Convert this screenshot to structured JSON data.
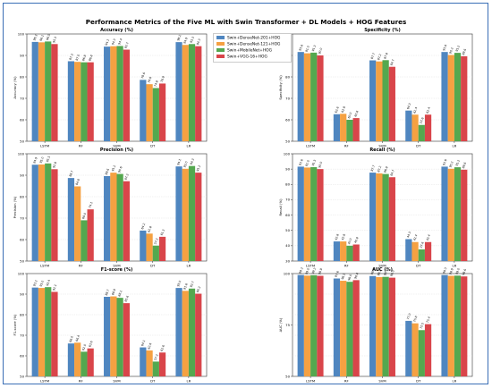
{
  "title": "Performance Metrics of the Five ML with Swin Transformer + DL Models + HOG Features",
  "colors": [
    "#4f86c0",
    "#f5a142",
    "#54a84f",
    "#d9454a"
  ],
  "chart_data": [
    {
      "type": "bar",
      "title": "Accuracy (%)",
      "ylabel": "Accuracy (%)",
      "categories": [
        "LSTM",
        "RF",
        "SVM",
        "DT",
        "LR"
      ],
      "ylim": [
        50,
        100
      ],
      "yticks": [
        50,
        60,
        70,
        80,
        90,
        100
      ],
      "series": [
        {
          "name": "Swin+DenseNet-201+HOG",
          "values": [
            96.3,
            87.3,
            94.1,
            78.6,
            96.2
          ]
        },
        {
          "name": "Swin+DenseNet-121+HOG",
          "values": [
            96.1,
            87.0,
            94.3,
            76.6,
            94.9
          ]
        },
        {
          "name": "Swin+MobileNet+HOG",
          "values": [
            96.5,
            86.8,
            94.4,
            74.8,
            95.3
          ]
        },
        {
          "name": "Swin+VGG-16+HOG",
          "values": [
            95.3,
            86.8,
            92.7,
            76.9,
            94.3
          ]
        }
      ]
    },
    {
      "type": "bar",
      "title": "Specificity (%)",
      "ylabel": "Specificity (%)",
      "categories": [
        "LSTM",
        "RF",
        "SVM",
        "DT",
        "LR"
      ],
      "ylim": [
        50,
        100
      ],
      "yticks": [
        50,
        60,
        70,
        80,
        90,
        100
      ],
      "series": [
        {
          "name": "Swin+DenseNet-201+HOG",
          "values": [
            91.6,
            62.6,
            87.7,
            64.3,
            91.6
          ]
        },
        {
          "name": "Swin+DenseNet-121+HOG",
          "values": [
            91.0,
            62.8,
            87.2,
            62.4,
            90.2
          ]
        },
        {
          "name": "Swin+MobileNet+HOG",
          "values": [
            91.3,
            60.0,
            87.8,
            57.6,
            91.2
          ]
        },
        {
          "name": "Swin+VGG-16+HOG",
          "values": [
            90.0,
            60.8,
            84.7,
            62.4,
            89.6
          ]
        }
      ]
    },
    {
      "type": "bar",
      "title": "Precision (%)",
      "ylabel": "Precision (%)",
      "categories": [
        "LSTM",
        "RF",
        "SVM",
        "DT",
        "LR"
      ],
      "ylim": [
        50,
        100
      ],
      "yticks": [
        50,
        60,
        70,
        80,
        90,
        100
      ],
      "series": [
        {
          "name": "Swin+DenseNet-201+HOG",
          "values": [
            94.9,
            88.7,
            89.6,
            64.2,
            94.1
          ]
        },
        {
          "name": "Swin+DenseNet-121+HOG",
          "values": [
            95.0,
            84.8,
            91.2,
            62.8,
            93.0
          ]
        },
        {
          "name": "Swin+MobileNet+HOG",
          "values": [
            95.5,
            69.0,
            90.6,
            57.2,
            94.3
          ]
        },
        {
          "name": "Swin+VGG-16+HOG",
          "values": [
            92.8,
            74.1,
            87.2,
            61.3,
            91.2
          ]
        }
      ]
    },
    {
      "type": "bar",
      "title": "Recall (%)",
      "ylabel": "Recall (%)",
      "categories": [
        "LSTM",
        "RF",
        "SVM",
        "DT",
        "LR"
      ],
      "ylim": [
        30,
        100
      ],
      "yticks": [
        30,
        40,
        50,
        60,
        70,
        80,
        90,
        100
      ],
      "series": [
        {
          "name": "Swin+DenseNet-201+HOG",
          "values": [
            91.6,
            42.8,
            87.7,
            44.3,
            91.6
          ]
        },
        {
          "name": "Swin+DenseNet-121+HOG",
          "values": [
            91.0,
            42.8,
            87.2,
            42.4,
            90.2
          ]
        },
        {
          "name": "Swin+MobileNet+HOG",
          "values": [
            91.3,
            40.0,
            86.8,
            37.6,
            91.2
          ]
        },
        {
          "name": "Swin+VGG-16+HOG",
          "values": [
            90.0,
            40.8,
            84.7,
            42.4,
            89.6
          ]
        }
      ]
    },
    {
      "type": "bar",
      "title": "F1-score (%)",
      "ylabel": "F1-score (%)",
      "categories": [
        "LSTM",
        "RF",
        "SVM",
        "DT",
        "LR"
      ],
      "ylim": [
        50,
        100
      ],
      "yticks": [
        50,
        60,
        70,
        80,
        90,
        100
      ],
      "series": [
        {
          "name": "Swin+DenseNet-201+HOG",
          "values": [
            93.2,
            66.0,
            88.7,
            64.1,
            93.0
          ]
        },
        {
          "name": "Swin+DenseNet-121+HOG",
          "values": [
            93.0,
            66.4,
            88.9,
            62.6,
            91.6
          ]
        },
        {
          "name": "Swin+MobileNet+HOG",
          "values": [
            93.4,
            62.0,
            88.2,
            57.2,
            92.7
          ]
        },
        {
          "name": "Swin+VGG-16+HOG",
          "values": [
            91.1,
            63.6,
            85.6,
            61.6,
            90.2
          ]
        }
      ]
    },
    {
      "type": "bar",
      "title": "AUC (%)",
      "ylabel": "AUC (%)",
      "categories": [
        "LSTM",
        "RF",
        "SVM",
        "DT",
        "LR"
      ],
      "ylim": [
        50,
        100
      ],
      "yticks": [
        50,
        75,
        100
      ],
      "extra_ticks": [
        60,
        70,
        80,
        90
      ],
      "series": [
        {
          "name": "Swin+DenseNet-201+HOG",
          "values": [
            99.3,
            97.6,
            98.8,
            77.0,
            99.3
          ]
        },
        {
          "name": "Swin+DenseNet-121+HOG",
          "values": [
            99.0,
            96.5,
            98.3,
            75.8,
            98.9
          ]
        },
        {
          "name": "Swin+MobileNet+HOG",
          "values": [
            99.2,
            96.0,
            98.4,
            72.5,
            99.0
          ]
        },
        {
          "name": "Swin+VGG-16+HOG",
          "values": [
            98.9,
            96.8,
            98.0,
            75.4,
            98.6
          ]
        }
      ]
    }
  ]
}
